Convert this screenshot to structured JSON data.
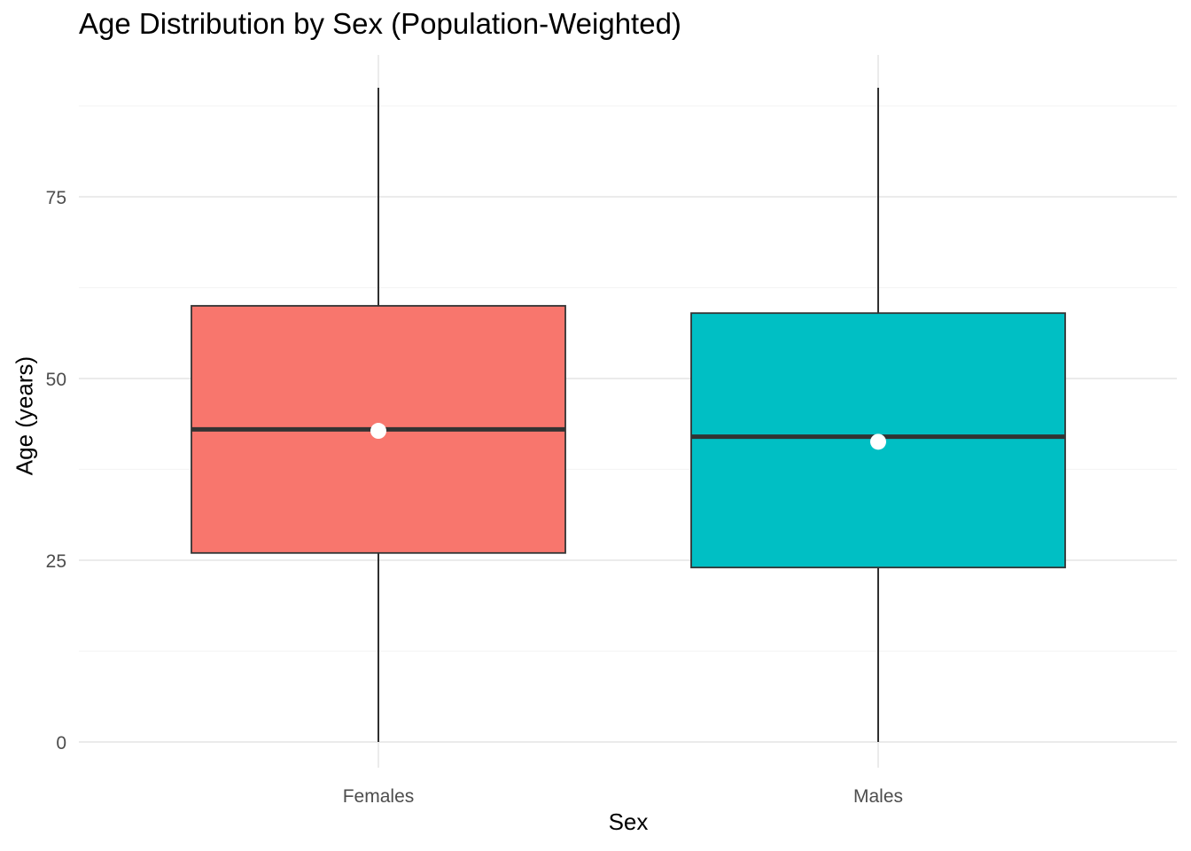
{
  "chart_data": {
    "type": "boxplot",
    "title": "Age Distribution by Sex (Population-Weighted)",
    "xlabel": "Sex",
    "ylabel": "Age (years)",
    "categories": [
      "Females",
      "Males"
    ],
    "ylim": [
      0,
      90
    ],
    "y_ticks": [
      0,
      25,
      50,
      75
    ],
    "grid": true,
    "legend": "none",
    "series": [
      {
        "category": "Females",
        "min": 0,
        "q1": 26,
        "median": 43,
        "q3": 60,
        "max": 90,
        "mean": 42.8,
        "color": "#F8766D"
      },
      {
        "category": "Males",
        "min": 0,
        "q1": 24,
        "median": 42,
        "q3": 59,
        "max": 90,
        "mean": 41.3,
        "color": "#00BFC4"
      }
    ]
  },
  "colors": {
    "grid_major": "#EBEBEB",
    "grid_minor": "#F5F5F5",
    "box_outline": "#333333",
    "whisker": "#000000",
    "mean_marker": "#FFFFFF",
    "tick_label": "#4D4D4D"
  }
}
